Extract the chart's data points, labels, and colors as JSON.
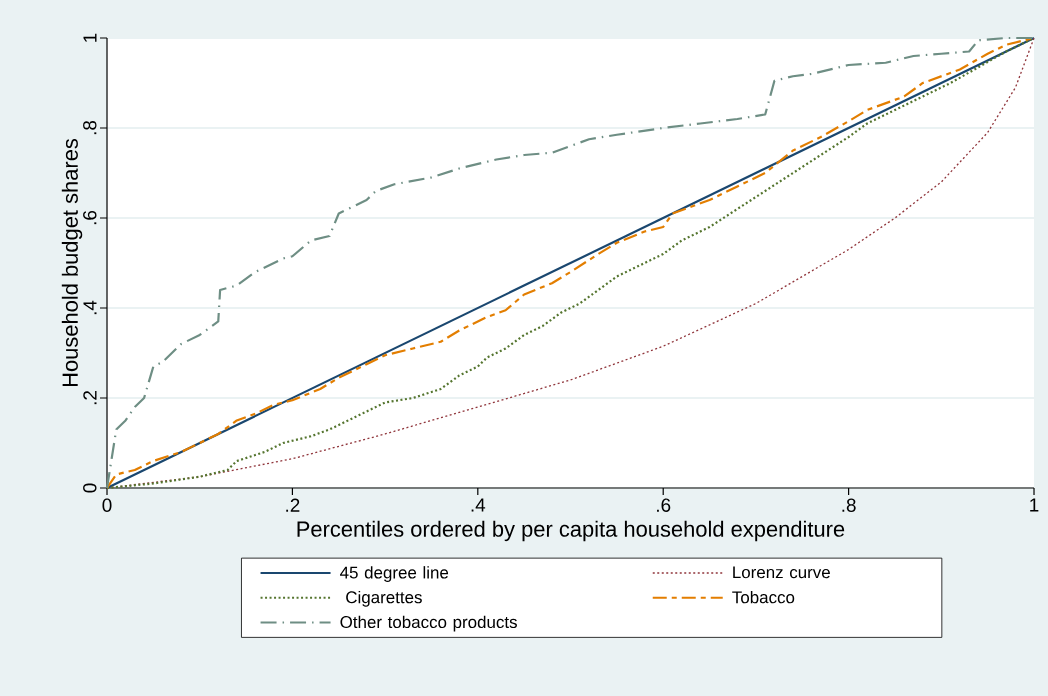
{
  "chart_data": {
    "type": "line",
    "xlabel": "Percentiles ordered by per capita household expenditure",
    "ylabel": "Household budget shares",
    "xlim": [
      0,
      1
    ],
    "ylim": [
      0,
      1
    ],
    "xticks": [
      0,
      {
        "value": 0.2,
        "label": ".2"
      },
      {
        "value": 0.4,
        "label": ".4"
      },
      {
        "value": 0.6,
        "label": ".6"
      },
      {
        "value": 0.8,
        "label": ".8"
      },
      1
    ],
    "yticks": [
      0,
      {
        "value": 0.2,
        "label": ".2"
      },
      {
        "value": 0.4,
        "label": ".4"
      },
      {
        "value": 0.6,
        "label": ".6"
      },
      {
        "value": 0.8,
        "label": ".8"
      },
      1
    ],
    "grid": "y",
    "legend": "bottom",
    "marker": "none",
    "series": [
      {
        "name": "45 degree line",
        "color": "#1a476f",
        "line_style": "solid",
        "x": [
          0,
          1
        ],
        "values": [
          0,
          1
        ]
      },
      {
        "name": "Lorenz curve",
        "color": "#90353b",
        "line_style": "dotted",
        "x": [
          0,
          0.1,
          0.2,
          0.3,
          0.4,
          0.5,
          0.6,
          0.7,
          0.8,
          0.85,
          0.9,
          0.95,
          0.98,
          1
        ],
        "values": [
          0,
          0.025,
          0.065,
          0.12,
          0.18,
          0.24,
          0.315,
          0.41,
          0.53,
          0.6,
          0.68,
          0.79,
          0.89,
          1
        ]
      },
      {
        "name": " Cigarettes",
        "color": "#55752f",
        "line_style": "dotted",
        "x": [
          0,
          0.05,
          0.1,
          0.13,
          0.14,
          0.17,
          0.19,
          0.22,
          0.24,
          0.26,
          0.28,
          0.3,
          0.33,
          0.36,
          0.38,
          0.4,
          0.41,
          0.43,
          0.45,
          0.47,
          0.49,
          0.51,
          0.53,
          0.55,
          0.58,
          0.6,
          0.62,
          0.65,
          0.68,
          0.71,
          0.74,
          0.77,
          0.8,
          0.82,
          0.85,
          0.88,
          0.91,
          0.94,
          0.97,
          1
        ],
        "values": [
          0,
          0.01,
          0.025,
          0.04,
          0.06,
          0.08,
          0.1,
          0.115,
          0.13,
          0.15,
          0.17,
          0.19,
          0.2,
          0.22,
          0.25,
          0.27,
          0.29,
          0.31,
          0.34,
          0.36,
          0.39,
          0.41,
          0.44,
          0.47,
          0.5,
          0.52,
          0.55,
          0.58,
          0.62,
          0.66,
          0.7,
          0.74,
          0.78,
          0.81,
          0.84,
          0.87,
          0.9,
          0.935,
          0.97,
          1
        ]
      },
      {
        "name": "Tobacco",
        "color": "#e37e00",
        "line_style": "dashed",
        "x": [
          0,
          0.01,
          0.03,
          0.05,
          0.08,
          0.1,
          0.12,
          0.14,
          0.16,
          0.18,
          0.2,
          0.23,
          0.25,
          0.28,
          0.3,
          0.33,
          0.36,
          0.38,
          0.41,
          0.43,
          0.45,
          0.48,
          0.5,
          0.53,
          0.55,
          0.58,
          0.6,
          0.61,
          0.65,
          0.68,
          0.71,
          0.74,
          0.77,
          0.8,
          0.82,
          0.86,
          0.88,
          0.92,
          0.95,
          0.97,
          1
        ],
        "values": [
          0,
          0.03,
          0.04,
          0.06,
          0.08,
          0.1,
          0.12,
          0.15,
          0.165,
          0.185,
          0.195,
          0.22,
          0.245,
          0.275,
          0.295,
          0.31,
          0.325,
          0.35,
          0.38,
          0.395,
          0.43,
          0.455,
          0.48,
          0.52,
          0.545,
          0.57,
          0.58,
          0.61,
          0.64,
          0.67,
          0.7,
          0.75,
          0.78,
          0.815,
          0.84,
          0.87,
          0.9,
          0.93,
          0.965,
          0.985,
          1
        ]
      },
      {
        "name": "Other tobacco products",
        "color": "#6e8e84",
        "line_style": "dashdot",
        "x": [
          0,
          0.01,
          0.02,
          0.03,
          0.04,
          0.05,
          0.06,
          0.07,
          0.08,
          0.1,
          0.12,
          0.122,
          0.14,
          0.16,
          0.18,
          0.19,
          0.2,
          0.22,
          0.24,
          0.25,
          0.27,
          0.28,
          0.29,
          0.31,
          0.35,
          0.38,
          0.4,
          0.42,
          0.45,
          0.48,
          0.52,
          0.55,
          0.6,
          0.64,
          0.68,
          0.71,
          0.72,
          0.74,
          0.76,
          0.8,
          0.84,
          0.87,
          0.9,
          0.93,
          0.94,
          0.97,
          1
        ],
        "values": [
          0,
          0.13,
          0.15,
          0.18,
          0.2,
          0.27,
          0.28,
          0.3,
          0.32,
          0.34,
          0.37,
          0.44,
          0.45,
          0.48,
          0.5,
          0.51,
          0.515,
          0.55,
          0.56,
          0.61,
          0.63,
          0.64,
          0.66,
          0.675,
          0.69,
          0.71,
          0.72,
          0.73,
          0.74,
          0.745,
          0.775,
          0.785,
          0.8,
          0.81,
          0.82,
          0.83,
          0.905,
          0.915,
          0.92,
          0.94,
          0.945,
          0.96,
          0.965,
          0.97,
          0.995,
          1.0,
          1
        ]
      }
    ]
  }
}
